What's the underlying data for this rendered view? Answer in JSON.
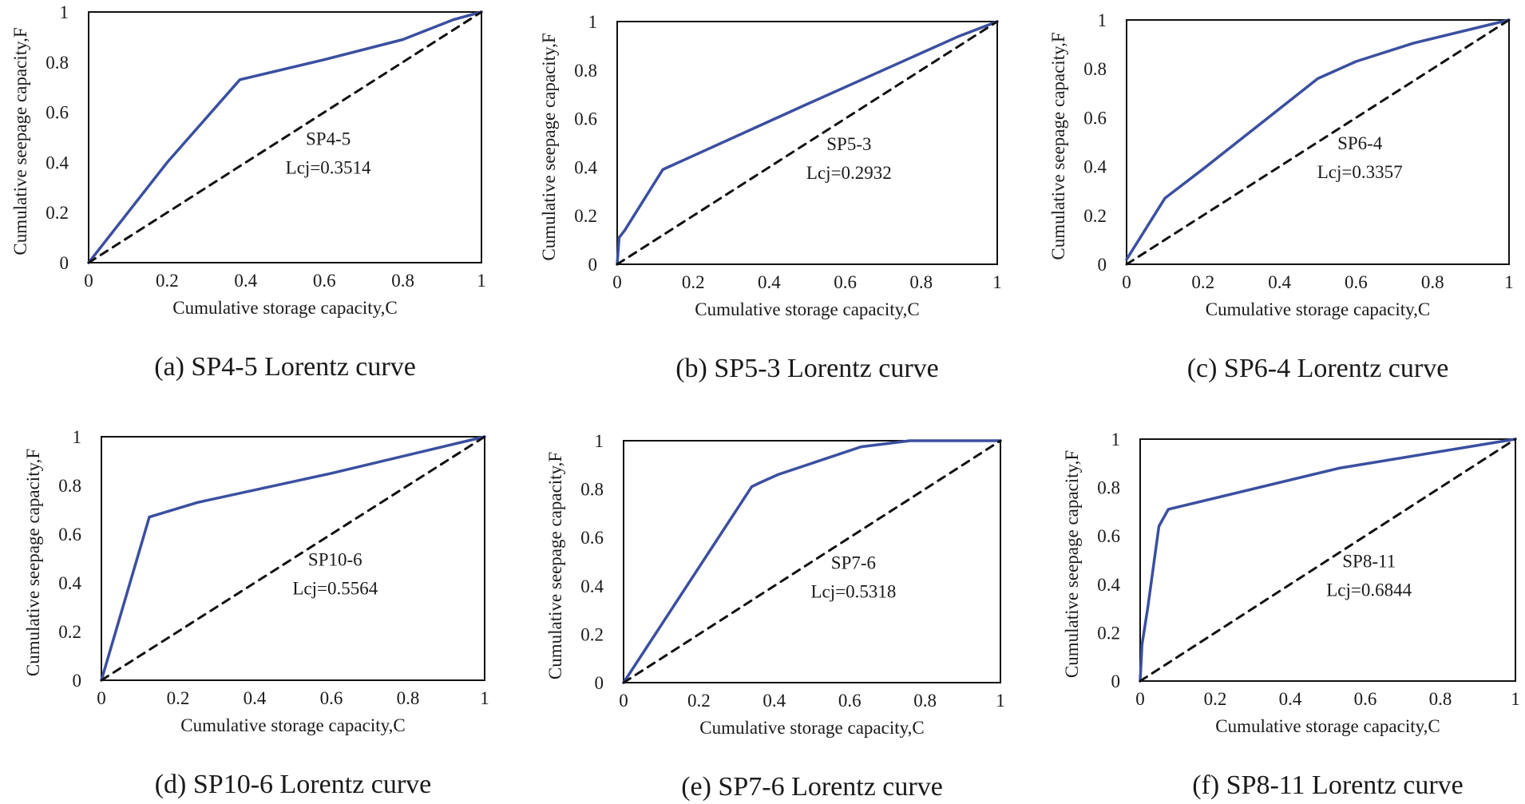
{
  "colors": {
    "curve": "#3b4fa0",
    "diagonal": "#111111",
    "frame": "#111111"
  },
  "chart_data": [
    {
      "type": "line",
      "panel": "a",
      "caption": "(a) SP4-5 Lorentz curve",
      "xlabel": "Cumulative storage capacity,C",
      "ylabel": "Cumulative seepage capacity,F",
      "xlim": [
        0,
        1
      ],
      "ylim": [
        0,
        1
      ],
      "xticks": [
        "0",
        "0.2",
        "0.4",
        "0.6",
        "0.8",
        "1"
      ],
      "yticks": [
        "0",
        "0.2",
        "0.4",
        "0.6",
        "0.8",
        "1"
      ],
      "annotation": {
        "name": "SP4-5",
        "value": "Lcj=0.3514"
      },
      "series": [
        {
          "name": "Lorentz curve",
          "style": "solid",
          "x": [
            0,
            0.2,
            0.385,
            0.6,
            0.8,
            0.93,
            1
          ],
          "y": [
            0,
            0.4,
            0.73,
            0.81,
            0.89,
            0.97,
            1
          ]
        },
        {
          "name": "Equality line",
          "style": "dashed",
          "x": [
            0,
            1
          ],
          "y": [
            0,
            1
          ]
        }
      ]
    },
    {
      "type": "line",
      "panel": "b",
      "caption": "(b) SP5-3 Lorentz curve",
      "xlabel": "Cumulative storage capacity,C",
      "ylabel": "Cumulative seepage capacity,F",
      "xlim": [
        0,
        1
      ],
      "ylim": [
        0,
        1
      ],
      "xticks": [
        "0",
        "0.2",
        "0.4",
        "0.6",
        "0.8",
        "1"
      ],
      "yticks": [
        "0",
        "0.2",
        "0.4",
        "0.6",
        "0.8",
        "1"
      ],
      "annotation": {
        "name": "SP5-3",
        "value": "Lcj=0.2932"
      },
      "series": [
        {
          "name": "Lorentz curve",
          "style": "solid",
          "x": [
            0,
            0.005,
            0.02,
            0.12,
            0.5,
            0.9,
            1
          ],
          "y": [
            0,
            0.11,
            0.14,
            0.39,
            0.66,
            0.94,
            1
          ]
        },
        {
          "name": "Equality line",
          "style": "dashed",
          "x": [
            0,
            1
          ],
          "y": [
            0,
            1
          ]
        }
      ]
    },
    {
      "type": "line",
      "panel": "c",
      "caption": "(c) SP6-4 Lorentz curve",
      "xlabel": "Cumulative storage capacity,C",
      "ylabel": "Cumulative seepage capacity,F",
      "xlim": [
        0,
        1
      ],
      "ylim": [
        0,
        1
      ],
      "xticks": [
        "0",
        "0.2",
        "0.4",
        "0.6",
        "0.8",
        "1"
      ],
      "yticks": [
        "0",
        "0.2",
        "0.4",
        "0.6",
        "0.8",
        "1"
      ],
      "annotation": {
        "name": "SP6-4",
        "value": "Lcj=0.3357"
      },
      "series": [
        {
          "name": "Lorentz curve",
          "style": "solid",
          "x": [
            0,
            0.1,
            0.2,
            0.5,
            0.6,
            0.75,
            1
          ],
          "y": [
            0.02,
            0.27,
            0.39,
            0.76,
            0.83,
            0.905,
            1
          ]
        },
        {
          "name": "Equality line",
          "style": "dashed",
          "x": [
            0,
            1
          ],
          "y": [
            0,
            1
          ]
        }
      ]
    },
    {
      "type": "line",
      "panel": "d",
      "caption": "(d) SP10-6 Lorentz curve",
      "xlabel": "Cumulative storage capacity,C",
      "ylabel": "Cumulative seepage capacity,F",
      "xlim": [
        0,
        1
      ],
      "ylim": [
        0,
        1
      ],
      "xticks": [
        "0",
        "0.2",
        "0.4",
        "0.6",
        "0.8",
        "1"
      ],
      "yticks": [
        "0",
        "0.2",
        "0.4",
        "0.6",
        "0.8",
        "1"
      ],
      "annotation": {
        "name": "SP10-6",
        "value": "Lcj=0.5564"
      },
      "series": [
        {
          "name": "Lorentz curve",
          "style": "solid",
          "x": [
            0,
            0.125,
            0.25,
            0.6,
            1
          ],
          "y": [
            0,
            0.67,
            0.73,
            0.85,
            1
          ]
        },
        {
          "name": "Equality line",
          "style": "dashed",
          "x": [
            0,
            1
          ],
          "y": [
            0,
            1
          ]
        }
      ]
    },
    {
      "type": "line",
      "panel": "e",
      "caption": "(e) SP7-6 Lorentz curve",
      "xlabel": "Cumulative storage capacity,C",
      "ylabel": "Cumulative seepage capacity,F",
      "xlim": [
        0,
        1
      ],
      "ylim": [
        0,
        1
      ],
      "xticks": [
        "0",
        "0.2",
        "0.4",
        "0.6",
        "0.8",
        "1"
      ],
      "yticks": [
        "0",
        "0.2",
        "0.4",
        "0.6",
        "0.8",
        "1"
      ],
      "annotation": {
        "name": "SP7-6",
        "value": "Lcj=0.5318"
      },
      "series": [
        {
          "name": "Lorentz curve",
          "style": "solid",
          "x": [
            0,
            0.34,
            0.36,
            0.41,
            0.63,
            0.76,
            1
          ],
          "y": [
            0,
            0.81,
            0.825,
            0.86,
            0.975,
            1,
            1
          ]
        },
        {
          "name": "Equality line",
          "style": "dashed",
          "x": [
            0,
            1
          ],
          "y": [
            0,
            1
          ]
        }
      ]
    },
    {
      "type": "line",
      "panel": "f",
      "caption": "(f) SP8-11 Lorentz curve",
      "xlabel": "Cumulative storage capacity,C",
      "ylabel": "Cumulative seepage capacity,F",
      "xlim": [
        0,
        1
      ],
      "ylim": [
        0,
        1
      ],
      "xticks": [
        "0",
        "0.2",
        "0.4",
        "0.6",
        "0.8",
        "1"
      ],
      "yticks": [
        "0",
        "0.2",
        "0.4",
        "0.6",
        "0.8",
        "1"
      ],
      "annotation": {
        "name": "SP8-11",
        "value": "Lcj=0.6844"
      },
      "series": [
        {
          "name": "Lorentz curve",
          "style": "solid",
          "x": [
            0,
            0.005,
            0.02,
            0.05,
            0.075,
            0.53,
            1
          ],
          "y": [
            0,
            0.15,
            0.3,
            0.64,
            0.71,
            0.88,
            1
          ]
        },
        {
          "name": "Equality line",
          "style": "dashed",
          "x": [
            0,
            1
          ],
          "y": [
            0,
            1
          ]
        }
      ]
    }
  ]
}
